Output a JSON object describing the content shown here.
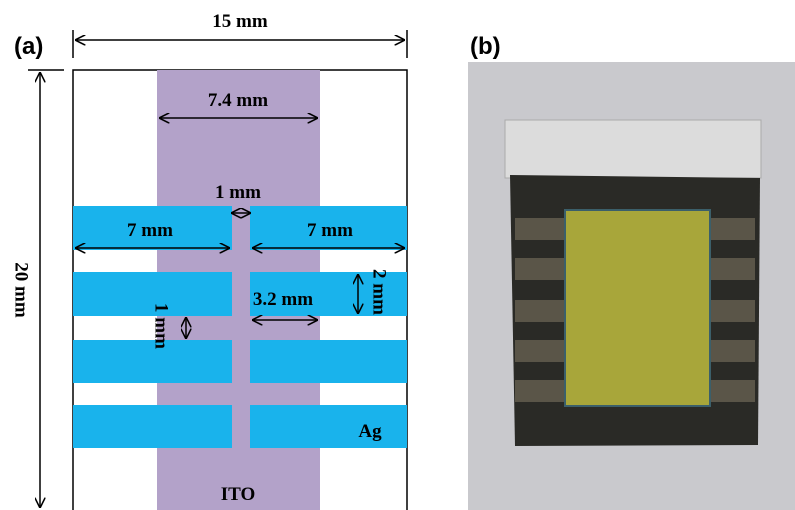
{
  "panel_a": {
    "label": "(a)",
    "width": "15 mm",
    "height": "20 mm",
    "ito_width": "7.4 mm",
    "gap_width": "1 mm",
    "left_strip_length": "7 mm",
    "right_strip_length": "7 mm",
    "strip_width": "2 mm",
    "overlap_length": "3.2 mm",
    "strip_spacing": "1 mm",
    "ag_label": "Ag",
    "ito_label": "ITO"
  },
  "panel_b": {
    "label": "(b)"
  }
}
